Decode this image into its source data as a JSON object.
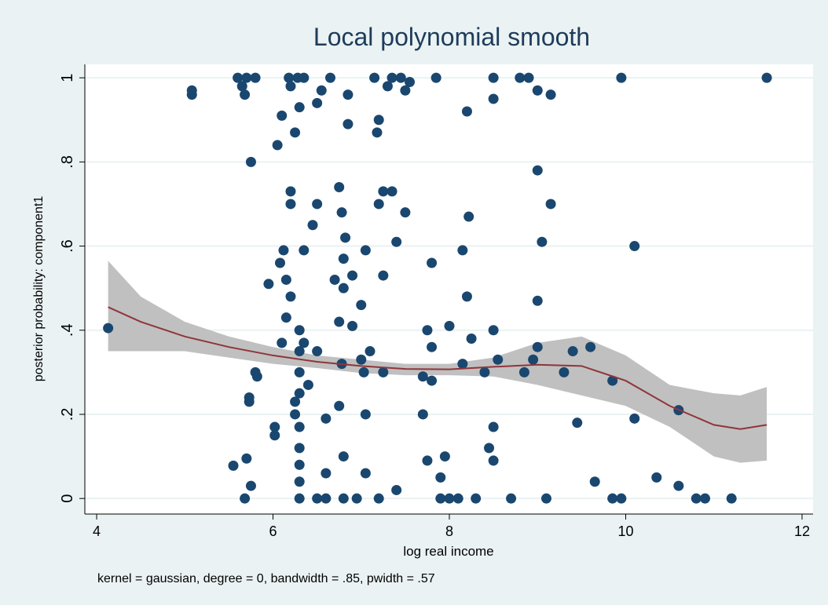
{
  "chart_data": {
    "type": "scatter",
    "title": "Local polynomial smooth",
    "x_label": "log real income",
    "y_label": "posterior probability: component1",
    "note": "kernel = gaussian, degree = 0, bandwidth = .85, pwidth = .57",
    "xlim": [
      3.866,
      12.125
    ],
    "ylim": [
      -0.037,
      1.032
    ],
    "xticks": [
      4,
      6,
      8,
      10,
      12
    ],
    "yticks": [
      0,
      {
        "value": 0.2,
        "label": ".2"
      },
      {
        "value": 0.4,
        "label": ".4"
      },
      {
        "value": 0.6,
        "label": ".6"
      },
      {
        "value": 0.8,
        "label": ".8"
      },
      1
    ],
    "grid": true,
    "points": {
      "color": "#1a476f",
      "x": [
        4.13,
        5.08,
        5.08,
        5.6,
        5.65,
        5.68,
        5.7,
        5.75,
        5.73,
        5.73,
        5.7,
        5.55,
        5.68,
        5.75,
        5.8,
        5.82,
        5.8,
        5.95,
        6.02,
        6.02,
        6.05,
        6.08,
        6.1,
        6.12,
        6.15,
        6.15,
        6.18,
        6.2,
        6.2,
        6.2,
        6.2,
        6.1,
        6.25,
        6.25,
        6.28,
        6.3,
        6.3,
        6.3,
        6.3,
        6.3,
        6.3,
        6.3,
        6.3,
        6.3,
        6.3,
        6.35,
        6.35,
        6.35,
        6.25,
        6.4,
        6.45,
        6.5,
        6.5,
        6.5,
        6.5,
        6.55,
        6.6,
        6.6,
        6.65,
        6.7,
        6.75,
        6.75,
        6.78,
        6.8,
        6.8,
        6.82,
        6.78,
        6.75,
        6.8,
        6.8,
        6.85,
        6.85,
        6.9,
        6.9,
        6.95,
        7,
        7,
        7.03,
        7.05,
        7.05,
        7.05,
        7.1,
        7.15,
        7.18,
        7.2,
        7.2,
        7.25,
        7.25,
        7.25,
        7.3,
        7.35,
        7.35,
        7.4,
        7.4,
        7.45,
        7.5,
        7.5,
        7.55,
        7.7,
        7.7,
        7.75,
        7.75,
        7.8,
        7.8,
        7.8,
        7.85,
        7.9,
        7.95,
        8,
        8,
        8.15,
        8.15,
        8.2,
        8.2,
        8.22,
        8.25,
        8.3,
        8.4,
        8.45,
        8.5,
        8.5,
        8.5,
        8.5,
        8.5,
        8.55,
        8.7,
        8.8,
        8.85,
        8.9,
        8.95,
        9,
        9,
        9,
        9,
        9.05,
        9.1,
        9.15,
        9.15,
        9.3,
        9.4,
        9.45,
        9.6,
        9.65,
        9.85,
        9.95,
        9.95,
        10.1,
        10.1,
        10.35,
        10.6,
        10.6,
        10.8,
        11.2,
        11.6,
        10.9,
        9.85,
        7.9,
        8.1,
        6.6,
        7.2
      ],
      "y": [
        0.405,
        0.97,
        0.96,
        1,
        0.98,
        0.96,
        1,
        0.8,
        0.24,
        0.23,
        0.095,
        0.078,
        0,
        0.03,
        0.3,
        0.29,
        1,
        0.51,
        0.15,
        0.17,
        0.84,
        0.56,
        0.91,
        0.59,
        0.43,
        0.52,
        1,
        0.98,
        0.73,
        0.7,
        0.48,
        0.37,
        0.23,
        0.87,
        1,
        0.93,
        0.4,
        0.35,
        0.3,
        0.25,
        0.17,
        0.12,
        0.08,
        0.04,
        0,
        1,
        0.59,
        0.37,
        0.2,
        0.27,
        0.65,
        0.94,
        0.7,
        0.35,
        0,
        0.97,
        0.19,
        0.06,
        1,
        0.52,
        0.42,
        0.74,
        0.68,
        0.5,
        0.57,
        0.62,
        0.32,
        0.22,
        0.1,
        0,
        0.96,
        0.89,
        0.41,
        0.53,
        0,
        0.46,
        0.33,
        0.3,
        0.59,
        0.2,
        0.06,
        0.35,
        1,
        0.87,
        0.9,
        0.7,
        0.73,
        0.53,
        0.3,
        0.98,
        1,
        0.73,
        0.61,
        0.02,
        1,
        0.97,
        0.68,
        0.99,
        0.29,
        0.2,
        0.09,
        0.4,
        0.56,
        0.36,
        0.28,
        1,
        0.05,
        0.1,
        0.41,
        0,
        0.59,
        0.32,
        0.92,
        0.48,
        0.67,
        0.38,
        0,
        0.3,
        0.12,
        1,
        0.95,
        0.4,
        0.17,
        0.09,
        0.33,
        0,
        1,
        0.3,
        1,
        0.33,
        0.78,
        0.47,
        0.36,
        0.97,
        0.61,
        0,
        0.96,
        0.7,
        0.3,
        0.35,
        0.18,
        0.36,
        0.04,
        0.28,
        1,
        0,
        0.6,
        0.19,
        0.05,
        0.03,
        0.21,
        0,
        0,
        1,
        0,
        0,
        0,
        0,
        0,
        0
      ]
    },
    "smooth": {
      "color": "#90353b",
      "band_color": "#c0c0c0",
      "x": [
        4.13,
        4.5,
        5,
        5.5,
        6,
        6.5,
        7,
        7.5,
        8,
        8.5,
        9,
        9.5,
        10,
        10.5,
        11,
        11.3,
        11.6
      ],
      "y": [
        0.455,
        0.42,
        0.385,
        0.36,
        0.34,
        0.325,
        0.315,
        0.308,
        0.307,
        0.313,
        0.318,
        0.315,
        0.28,
        0.22,
        0.175,
        0.165,
        0.175
      ],
      "upper": [
        0.565,
        0.48,
        0.42,
        0.385,
        0.36,
        0.34,
        0.33,
        0.32,
        0.32,
        0.335,
        0.37,
        0.385,
        0.34,
        0.27,
        0.25,
        0.245,
        0.265
      ],
      "lower": [
        0.35,
        0.35,
        0.35,
        0.335,
        0.32,
        0.31,
        0.298,
        0.293,
        0.293,
        0.29,
        0.27,
        0.245,
        0.22,
        0.17,
        0.1,
        0.085,
        0.09
      ]
    }
  }
}
